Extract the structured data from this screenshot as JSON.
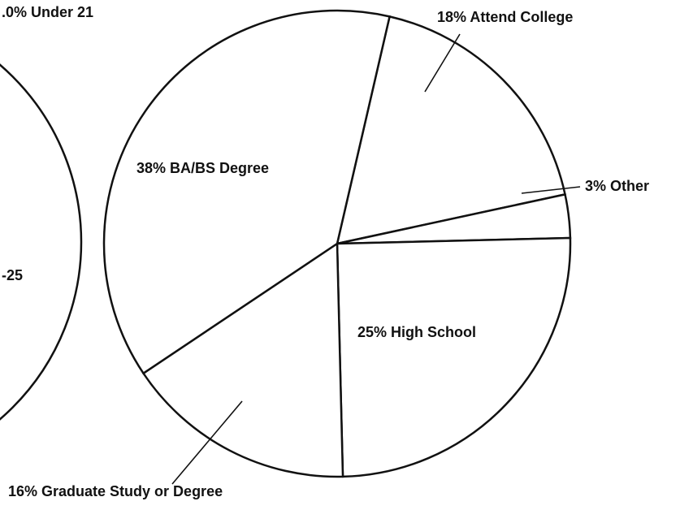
{
  "chart_data": {
    "type": "pie",
    "categories": [
      "18% Attend College",
      "3% Other",
      "25% High School",
      "16% Graduate Study or Degree",
      "38% BA/BS Degree"
    ],
    "values": [
      18,
      3,
      25,
      16,
      38
    ],
    "color": "#ffffff",
    "annotations": [
      ".0% Under 21",
      "-25"
    ]
  }
}
